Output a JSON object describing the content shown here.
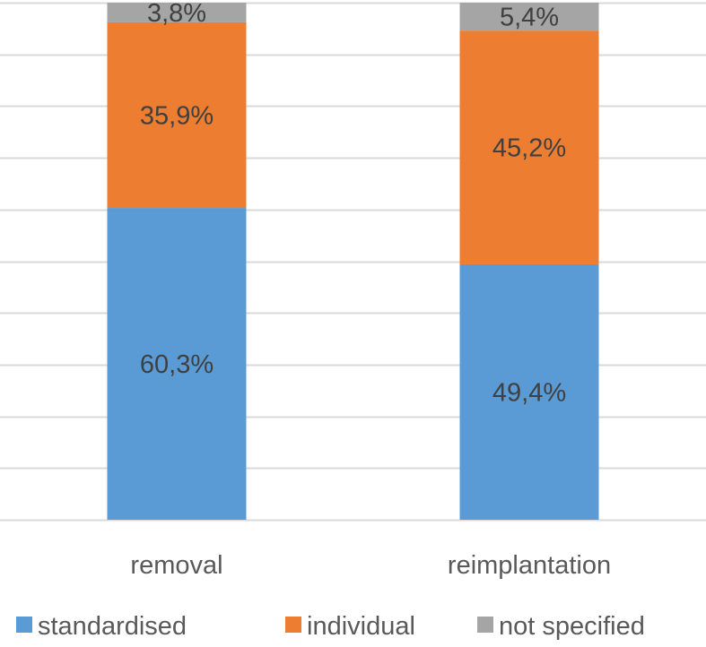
{
  "chart_data": {
    "type": "bar",
    "stacked": true,
    "percent_stacked": true,
    "categories": [
      "removal",
      "reimplantation"
    ],
    "series": [
      {
        "name": "standardised",
        "values": [
          60.3,
          49.4
        ],
        "labels": [
          "60,3%",
          "49,4%"
        ],
        "color": "#5b9bd5"
      },
      {
        "name": "individual",
        "values": [
          35.9,
          45.2
        ],
        "labels": [
          "35,9%",
          "45,2%"
        ],
        "color": "#ed7d31"
      },
      {
        "name": "not specified",
        "values": [
          3.8,
          5.4
        ],
        "labels": [
          "3,8%",
          "5,4%"
        ],
        "color": "#a5a5a5"
      }
    ],
    "ylim": [
      0,
      100
    ],
    "grid": true,
    "legend_position": "bottom",
    "gridline_color": "#d9d9d9"
  }
}
